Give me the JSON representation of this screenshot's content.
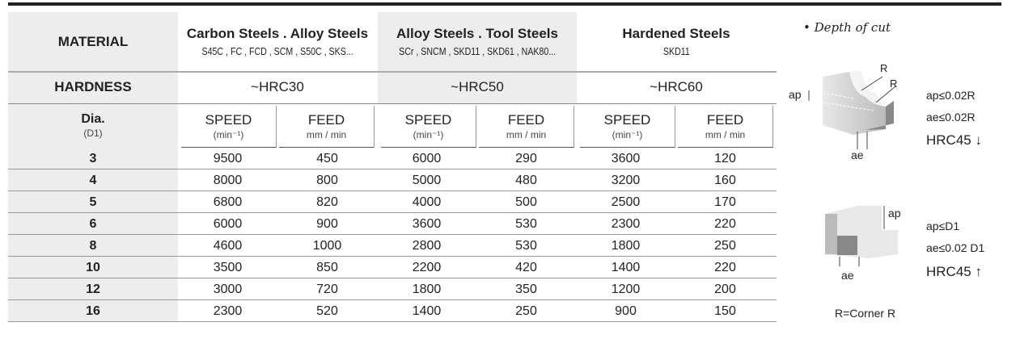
{
  "header": {
    "material_label": "MATERIAL",
    "hardness_label": "HARDNESS",
    "dia_label": "Dia.",
    "dia_sub": "(D1)",
    "groups": [
      {
        "title": "Carbon Steels . Alloy Steels",
        "grades": "S45C , FC , FCD , SCM , S50C , SKS...",
        "hardness": "~HRC30"
      },
      {
        "title": "Alloy  Steels . Tool Steels",
        "grades": "SCr , SNCM , SKD11 , SKD61 , NAK80...",
        "hardness": "~HRC50"
      },
      {
        "title": "Hardened Steels",
        "grades": "SKD11",
        "hardness": "~HRC60"
      }
    ],
    "speed_label": "SPEED",
    "speed_unit": "(min⁻¹)",
    "feed_label": "FEED",
    "feed_unit": "mm / min"
  },
  "rows": [
    {
      "dia": "3",
      "values": [
        "9500",
        "450",
        "6000",
        "290",
        "3600",
        "120"
      ]
    },
    {
      "dia": "4",
      "values": [
        "8000",
        "800",
        "5000",
        "480",
        "3200",
        "160"
      ]
    },
    {
      "dia": "5",
      "values": [
        "6800",
        "820",
        "4000",
        "500",
        "2500",
        "170"
      ]
    },
    {
      "dia": "6",
      "values": [
        "6000",
        "900",
        "3600",
        "530",
        "2300",
        "220"
      ]
    },
    {
      "dia": "8",
      "values": [
        "4600",
        "1000",
        "2800",
        "530",
        "1800",
        "250"
      ]
    },
    {
      "dia": "10",
      "values": [
        "3500",
        "850",
        "2200",
        "420",
        "1400",
        "220"
      ]
    },
    {
      "dia": "12",
      "values": [
        "3000",
        "720",
        "1800",
        "350",
        "1200",
        "200"
      ]
    },
    {
      "dia": "16",
      "values": [
        "2300",
        "520",
        "1400",
        "250",
        "900",
        "150"
      ]
    }
  ],
  "depth": {
    "title": "•  Depth of cut",
    "fig1": {
      "r1": "R",
      "r2": "R",
      "ap": "ap",
      "ae": "ae",
      "line1": "ap≤0.02R",
      "line2": "ae≤0.02R",
      "line3": "HRC45 ↓"
    },
    "fig2": {
      "ap": "ap",
      "ae": "ae",
      "line1": "ap≤D1",
      "line2": "ae≤0.02 D1",
      "line3": "HRC45 ↑"
    },
    "note": "R=Corner R"
  }
}
